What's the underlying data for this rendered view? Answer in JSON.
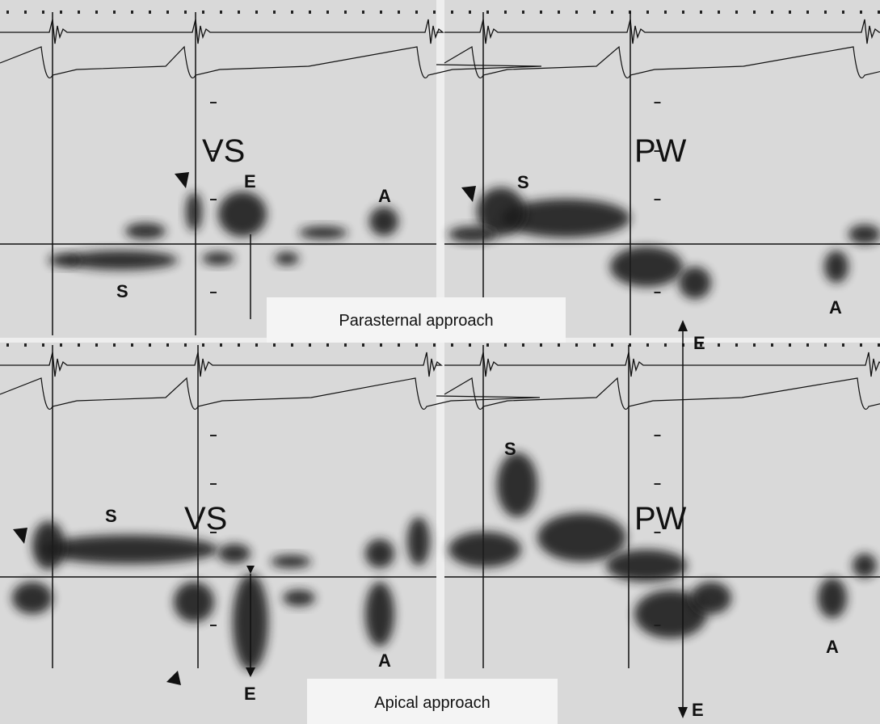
{
  "panels": [
    {
      "wall": "VS",
      "wave_labels": [
        "E",
        "A",
        "S"
      ]
    },
    {
      "wall": "PW",
      "wave_labels": [
        "S",
        "E",
        "A"
      ]
    },
    {
      "wall": "VS",
      "wave_labels": [
        "S",
        "E",
        "A"
      ]
    },
    {
      "wall": "PW",
      "wave_labels": [
        "S",
        "E",
        "A"
      ]
    }
  ],
  "approaches": [
    "Parasternal approach",
    "Apical approach"
  ]
}
